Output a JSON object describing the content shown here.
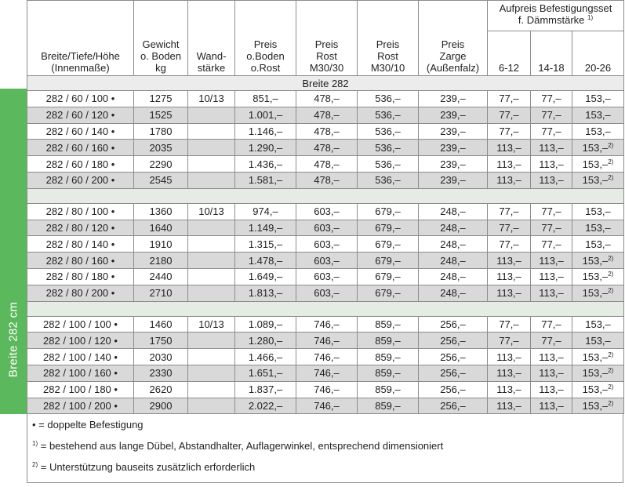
{
  "side_label": "Breite 282 cm",
  "headers": {
    "col1": [
      "Breite/Tiefe/Höhe",
      "(Innenmaße)"
    ],
    "col2": [
      "Gewicht",
      "o. Boden",
      "kg"
    ],
    "col3": [
      "Wand-",
      "stärke"
    ],
    "col4": [
      "Preis",
      "o.Boden",
      "o.Rost"
    ],
    "col5": [
      "Preis",
      "Rost",
      "M30/30"
    ],
    "col6": [
      "Preis",
      "Rost",
      "M30/10"
    ],
    "col7": [
      "Preis",
      "Zarge",
      "(Außenfalz)"
    ],
    "group": [
      "Aufpreis Befestigungsset",
      "f. Dämmstärke"
    ],
    "group_sup": "1)",
    "sub": [
      "6-12",
      "14-18",
      "20-26"
    ]
  },
  "section_title": "Breite 282",
  "groups": [
    {
      "rows": [
        [
          "282 / 60 / 100 •",
          "1275",
          "10/13",
          "851,–",
          "478,–",
          "536,–",
          "239,–",
          "77,–",
          "77,–",
          "153,–",
          ""
        ],
        [
          "282 / 60 / 120 •",
          "1525",
          "",
          "1.001,–",
          "478,–",
          "536,–",
          "239,–",
          "77,–",
          "77,–",
          "153,–",
          ""
        ],
        [
          "282 / 60 / 140 •",
          "1780",
          "",
          "1.146,–",
          "478,–",
          "536,–",
          "239,–",
          "77,–",
          "77,–",
          "153,–",
          ""
        ],
        [
          "282 / 60 / 160 •",
          "2035",
          "",
          "1.290,–",
          "478,–",
          "536,–",
          "239,–",
          "113,–",
          "113,–",
          "153,–",
          "2)"
        ],
        [
          "282 / 60 / 180 •",
          "2290",
          "",
          "1.436,–",
          "478,–",
          "536,–",
          "239,–",
          "113,–",
          "113,–",
          "153,–",
          "2)"
        ],
        [
          "282 / 60 / 200 •",
          "2545",
          "",
          "1.581,–",
          "478,–",
          "536,–",
          "239,–",
          "113,–",
          "113,–",
          "153,–",
          "2)"
        ]
      ]
    },
    {
      "rows": [
        [
          "282 / 80 / 100 •",
          "1360",
          "10/13",
          "974,–",
          "603,–",
          "679,–",
          "248,–",
          "77,–",
          "77,–",
          "153,–",
          ""
        ],
        [
          "282 / 80 / 120 •",
          "1640",
          "",
          "1.149,–",
          "603,–",
          "679,–",
          "248,–",
          "77,–",
          "77,–",
          "153,–",
          ""
        ],
        [
          "282 / 80 / 140 •",
          "1910",
          "",
          "1.315,–",
          "603,–",
          "679,–",
          "248,–",
          "77,–",
          "77,–",
          "153,–",
          ""
        ],
        [
          "282 / 80 / 160 •",
          "2180",
          "",
          "1.478,–",
          "603,–",
          "679,–",
          "248,–",
          "113,–",
          "113,–",
          "153,–",
          "2)"
        ],
        [
          "282 / 80 / 180 •",
          "2440",
          "",
          "1.649,–",
          "603,–",
          "679,–",
          "248,–",
          "113,–",
          "113,–",
          "153,–",
          "2)"
        ],
        [
          "282 / 80 / 200 •",
          "2710",
          "",
          "1.813,–",
          "603,–",
          "679,–",
          "248,–",
          "113,–",
          "113,–",
          "153,–",
          "2)"
        ]
      ]
    },
    {
      "rows": [
        [
          "282 / 100 / 100 •",
          "1460",
          "10/13",
          "1.089,–",
          "746,–",
          "859,–",
          "256,–",
          "77,–",
          "77,–",
          "153,–",
          ""
        ],
        [
          "282 / 100 / 120 •",
          "1750",
          "",
          "1.280,–",
          "746,–",
          "859,–",
          "256,–",
          "77,–",
          "77,–",
          "153,–",
          ""
        ],
        [
          "282 / 100 / 140 •",
          "2030",
          "",
          "1.466,–",
          "746,–",
          "859,–",
          "256,–",
          "113,–",
          "113,–",
          "153,–",
          "2)"
        ],
        [
          "282 / 100 / 160 •",
          "2330",
          "",
          "1.651,–",
          "746,–",
          "859,–",
          "256,–",
          "113,–",
          "113,–",
          "153,–",
          "2)"
        ],
        [
          "282 / 100 / 180 •",
          "2620",
          "",
          "1.837,–",
          "746,–",
          "859,–",
          "256,–",
          "113,–",
          "113,–",
          "153,–",
          "2)"
        ],
        [
          "282 / 100 / 200 •",
          "2900",
          "",
          "2.022,–",
          "746,–",
          "859,–",
          "256,–",
          "113,–",
          "113,–",
          "153,–",
          "2)"
        ]
      ]
    }
  ],
  "footnotes": [
    {
      "mark": "•",
      "text": " = doppelte Befestigung"
    },
    {
      "mark": "1)",
      "text": " = bestehend aus lange Dübel, Abstandhalter, Auflagerwinkel, entsprechend dimensioniert"
    },
    {
      "mark": "2)",
      "text": " = Unterstützung bauseits zusätzlich erforderlich"
    }
  ],
  "colors": {
    "side_bar": "#5cb85c",
    "row_shade": "#d9d9d9",
    "border": "#8c8c8c"
  }
}
